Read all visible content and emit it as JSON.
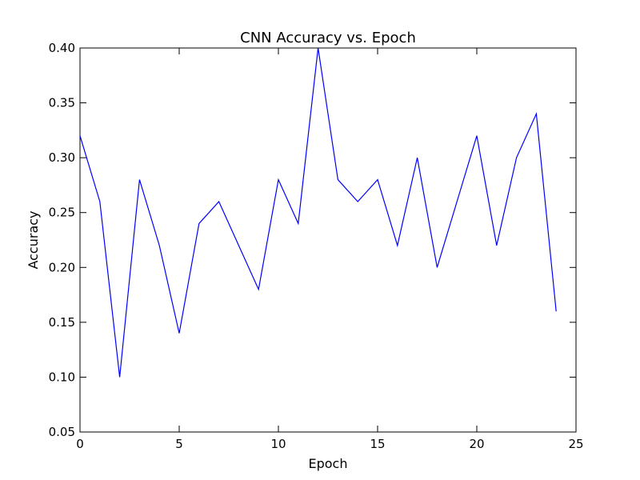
{
  "chart_data": {
    "type": "line",
    "title": "CNN Accuracy vs. Epoch",
    "xlabel": "Epoch",
    "ylabel": "Accuracy",
    "xlim": [
      0,
      25
    ],
    "ylim": [
      0.05,
      0.4
    ],
    "xticks": [
      0,
      5,
      10,
      15,
      20,
      25
    ],
    "xtick_labels": [
      "0",
      "5",
      "10",
      "15",
      "20",
      "25"
    ],
    "yticks": [
      0.05,
      0.1,
      0.15,
      0.2,
      0.25,
      0.3,
      0.35,
      0.4
    ],
    "ytick_labels": [
      "0.05",
      "0.10",
      "0.15",
      "0.20",
      "0.25",
      "0.30",
      "0.35",
      "0.40"
    ],
    "grid": false,
    "line_color": "#0000ff",
    "series": [
      {
        "x": [
          0,
          1,
          2,
          3,
          4,
          5,
          6,
          7,
          8,
          9,
          10,
          11,
          12,
          13,
          14,
          15,
          16,
          17,
          18,
          19,
          20,
          21,
          22,
          23,
          24
        ],
        "values": [
          0.32,
          0.26,
          0.1,
          0.28,
          0.22,
          0.14,
          0.24,
          0.26,
          0.22,
          0.18,
          0.28,
          0.24,
          0.4,
          0.28,
          0.26,
          0.28,
          0.22,
          0.3,
          0.2,
          0.26,
          0.32,
          0.22,
          0.3,
          0.34,
          0.16
        ]
      }
    ]
  }
}
